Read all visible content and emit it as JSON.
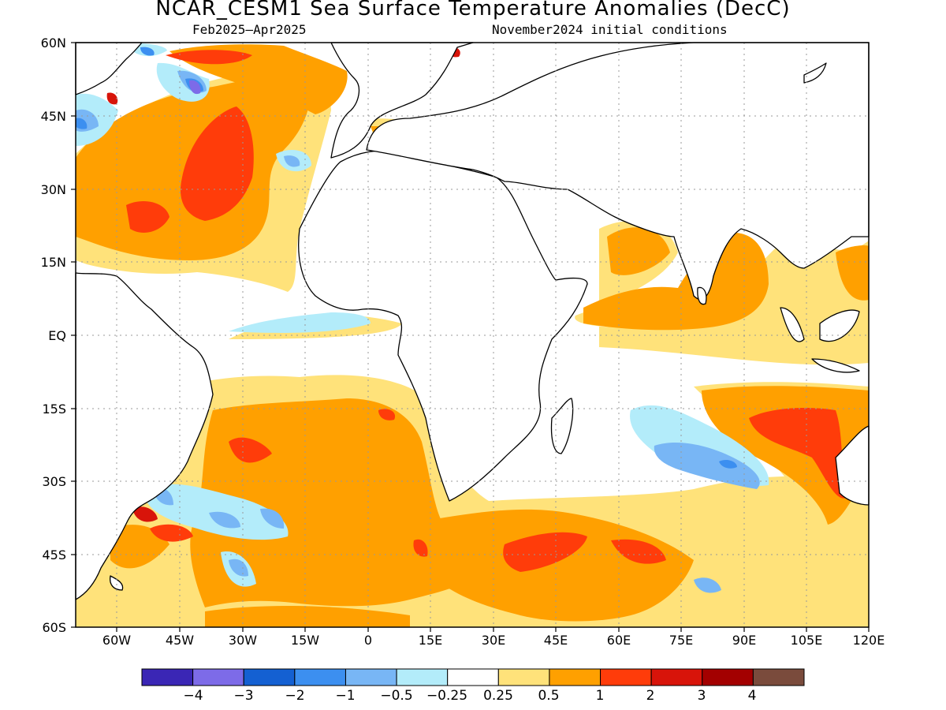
{
  "title": "NCAR_CESM1 Sea Surface Temperature Anomalies (DecC)",
  "subtitle_left": "Feb2025–Apr2025",
  "subtitle_right": "November2024 initial conditions",
  "lat_labels": [
    "60N",
    "45N",
    "30N",
    "15N",
    "EQ",
    "15S",
    "30S",
    "45S",
    "60S"
  ],
  "lon_labels": [
    "60W",
    "45W",
    "30W",
    "15W",
    "0",
    "15E",
    "30E",
    "45E",
    "60E",
    "75E",
    "90E",
    "105E",
    "120E"
  ],
  "colorbar": {
    "colors": [
      "#3a26b5",
      "#7d6be8",
      "#1460d2",
      "#3c8ff0",
      "#78b6f5",
      "#b3ecfa",
      "#ffffff",
      "#ffe27a",
      "#ffa000",
      "#ff3c0a",
      "#d8140a",
      "#a30000",
      "#7a4b3c"
    ],
    "labels": [
      "−4",
      "−3",
      "−2",
      "−1",
      "−0.5",
      "−0.25",
      "0.25",
      "0.5",
      "1",
      "2",
      "3",
      "4"
    ]
  }
}
